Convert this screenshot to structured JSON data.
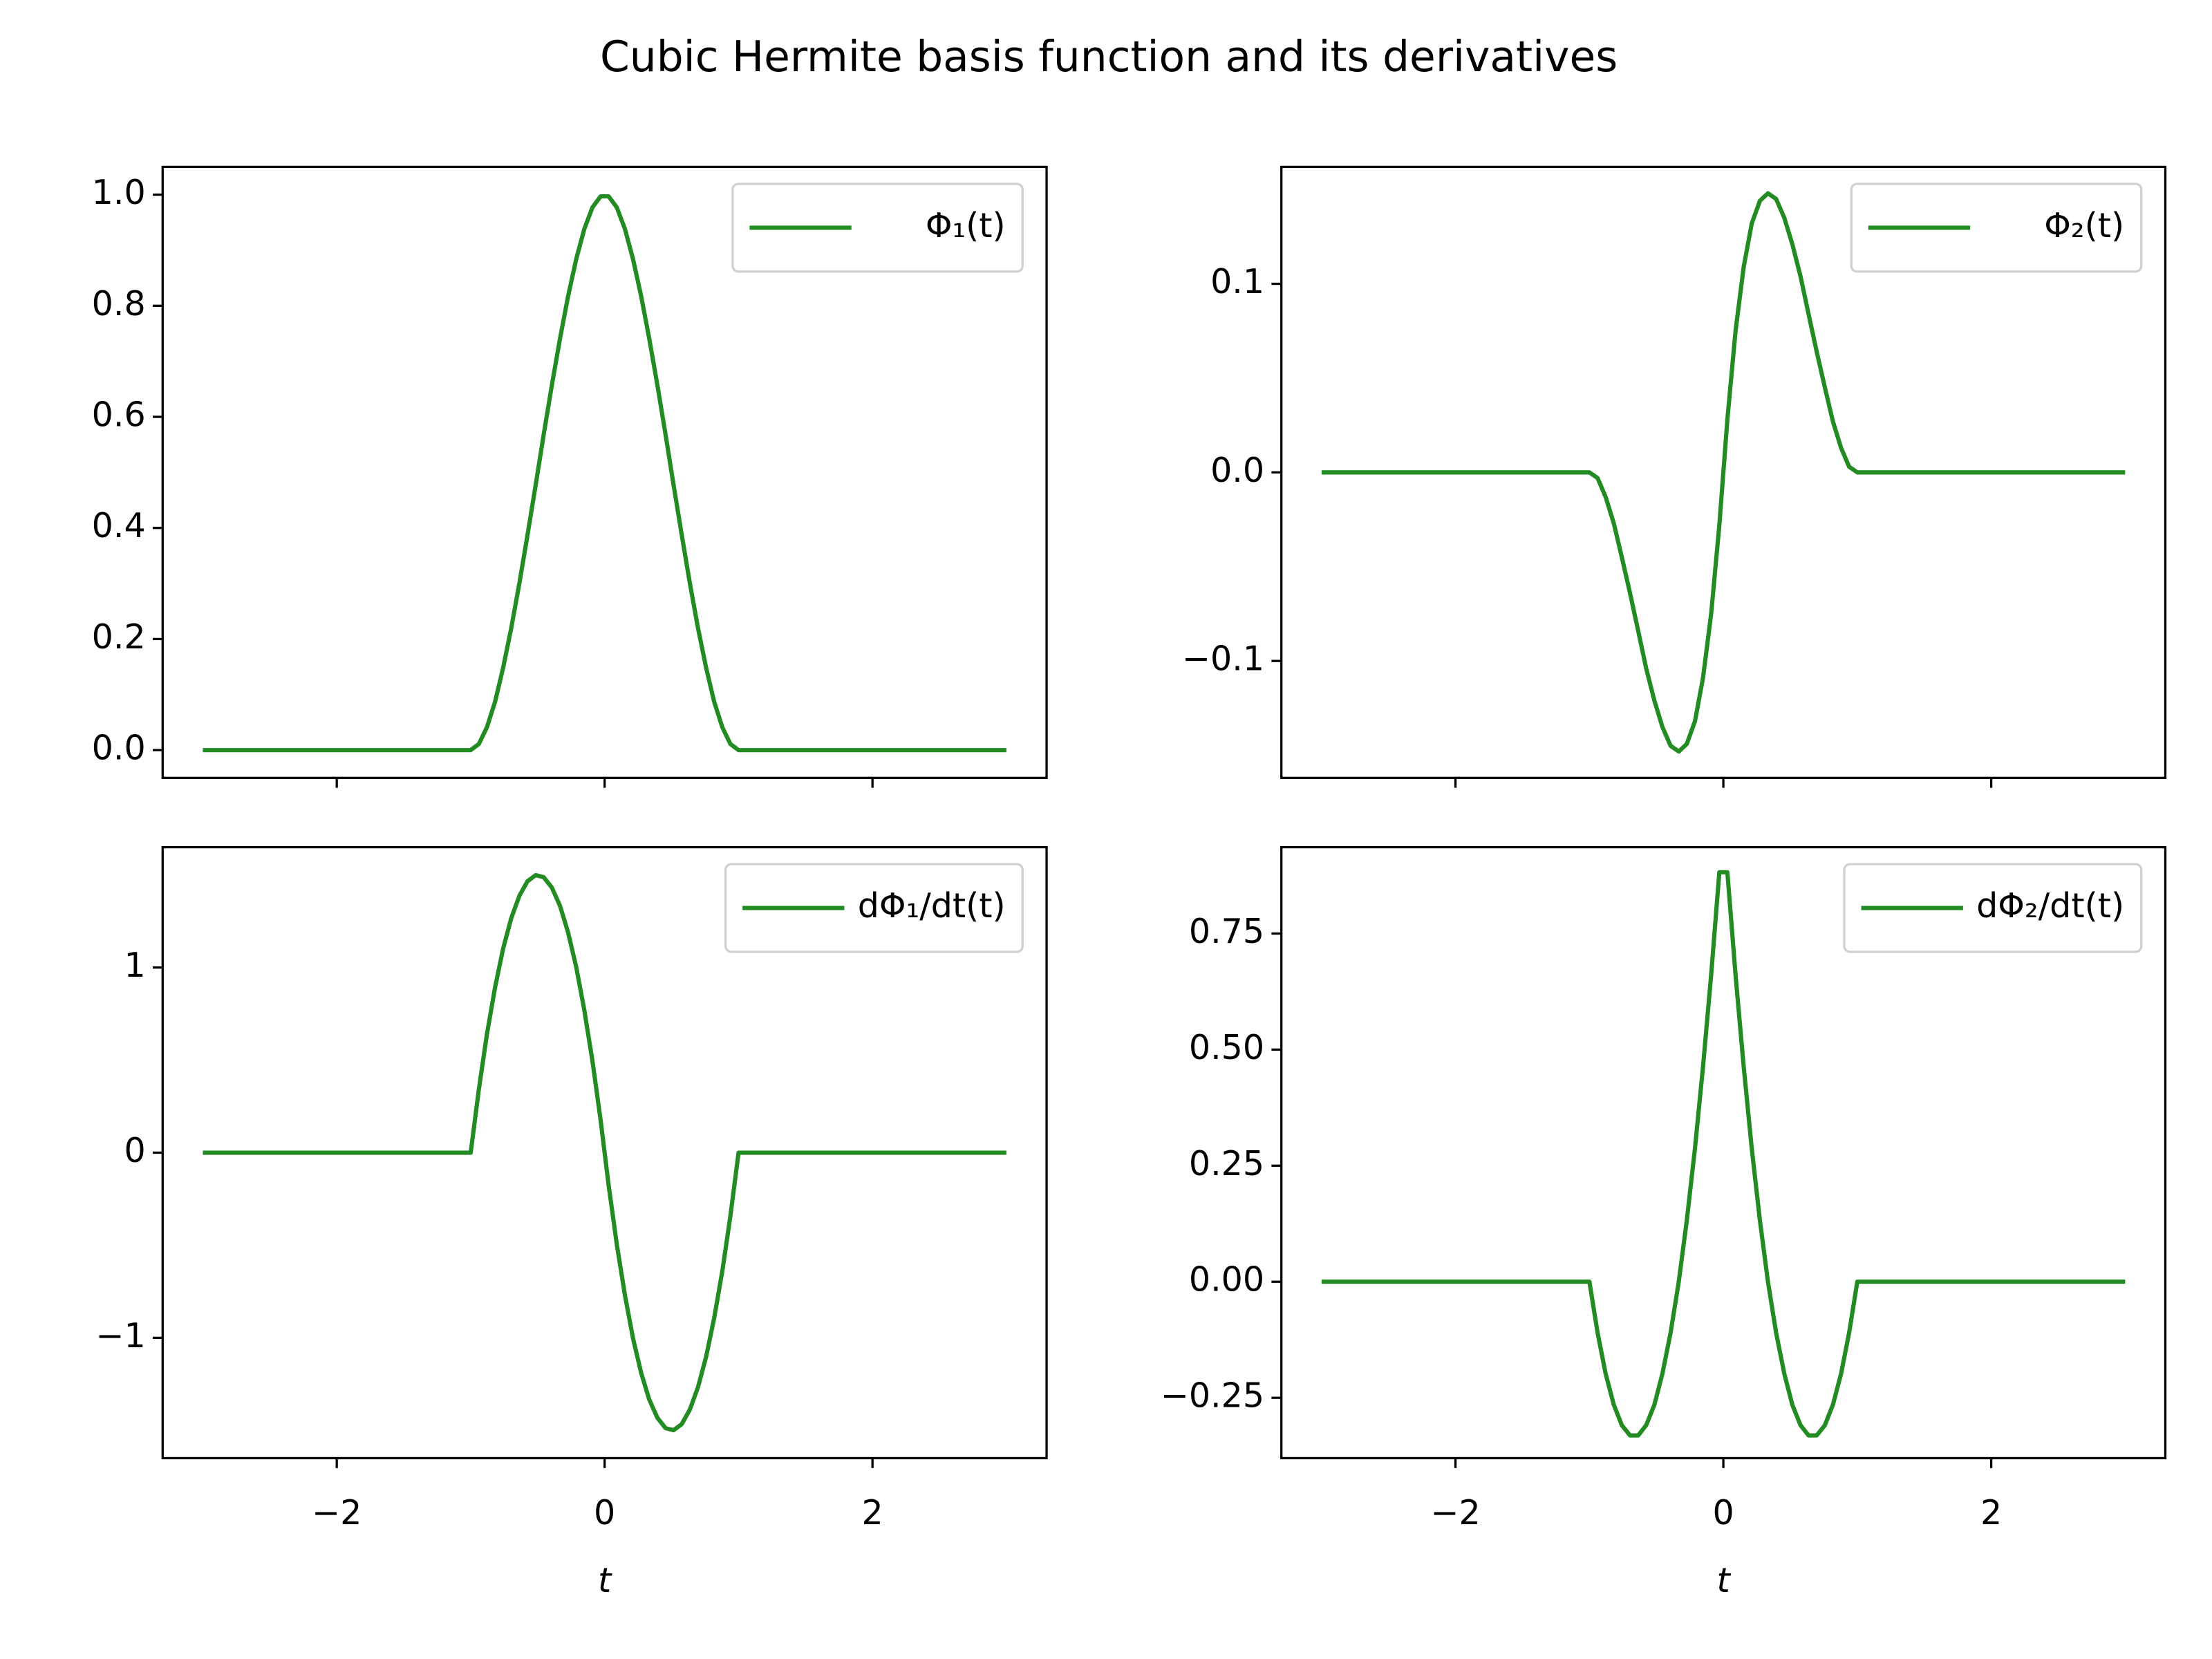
{
  "title": "Cubic Hermite basis function and its derivatives",
  "chart_data": [
    {
      "type": "line",
      "x": [
        -3,
        -1,
        -0.939,
        -0.879,
        -0.818,
        -0.758,
        -0.697,
        -0.636,
        -0.576,
        -0.515,
        -0.455,
        -0.394,
        -0.333,
        -0.273,
        -0.212,
        -0.152,
        -0.091,
        -0.03,
        0.03,
        0.091,
        0.152,
        0.212,
        0.273,
        0.333,
        0.394,
        0.455,
        0.515,
        0.576,
        0.636,
        0.697,
        0.758,
        0.818,
        0.879,
        0.939,
        1,
        3
      ],
      "series": [
        {
          "name": "Φ₁(t)",
          "color": "#228b22",
          "values": [
            0,
            0,
            0.011,
            0.041,
            0.087,
            0.148,
            0.22,
            0.301,
            0.387,
            0.477,
            0.568,
            0.657,
            0.741,
            0.817,
            0.884,
            0.938,
            0.977,
            0.997,
            0.997,
            0.977,
            0.938,
            0.884,
            0.817,
            0.741,
            0.657,
            0.568,
            0.477,
            0.387,
            0.301,
            0.22,
            0.148,
            0.087,
            0.041,
            0.011,
            0,
            0
          ]
        }
      ],
      "xlim": [
        -3.3,
        3.3
      ],
      "xticks": [
        -2,
        0,
        2
      ],
      "ylim": [
        -0.05,
        1.05
      ],
      "yticks": [
        {
          "value": 0,
          "label": "0.0"
        },
        0.2,
        0.4,
        0.6,
        0.8,
        {
          "value": 1,
          "label": "1.0"
        }
      ],
      "legend": "upper right"
    },
    {
      "type": "line",
      "x": [
        -3,
        -1,
        -0.939,
        -0.879,
        -0.818,
        -0.758,
        -0.697,
        -0.636,
        -0.576,
        -0.515,
        -0.455,
        -0.394,
        -0.333,
        -0.273,
        -0.212,
        -0.152,
        -0.091,
        -0.03,
        0.03,
        0.091,
        0.152,
        0.212,
        0.273,
        0.333,
        0.394,
        0.455,
        0.515,
        0.576,
        0.636,
        0.697,
        0.758,
        0.818,
        0.879,
        0.939,
        1,
        3
      ],
      "series": [
        {
          "name": "Φ₂(t)",
          "color": "#228b22",
          "values": [
            0,
            0,
            -0.003,
            -0.013,
            -0.027,
            -0.045,
            -0.064,
            -0.084,
            -0.104,
            -0.121,
            -0.135,
            -0.145,
            -0.148,
            -0.144,
            -0.132,
            -0.109,
            -0.075,
            -0.028,
            0.028,
            0.075,
            0.109,
            0.132,
            0.144,
            0.148,
            0.145,
            0.135,
            0.121,
            0.104,
            0.084,
            0.064,
            0.045,
            0.027,
            0.013,
            0.003,
            0,
            0
          ]
        }
      ],
      "xlim": [
        -3.3,
        3.3
      ],
      "xticks": [
        -2,
        0,
        2
      ],
      "ylim": [
        -0.162,
        0.162
      ],
      "yticks": [
        {
          "value": -0.1,
          "label": "−0.1"
        },
        {
          "value": 0,
          "label": "0.0"
        },
        0.1
      ],
      "legend": "upper right"
    },
    {
      "type": "line",
      "x": [
        -3,
        -1,
        -0.939,
        -0.879,
        -0.818,
        -0.758,
        -0.697,
        -0.636,
        -0.576,
        -0.515,
        -0.455,
        -0.394,
        -0.333,
        -0.273,
        -0.212,
        -0.152,
        -0.091,
        -0.03,
        0.03,
        0.091,
        0.152,
        0.212,
        0.273,
        0.333,
        0.394,
        0.455,
        0.515,
        0.576,
        0.636,
        0.697,
        0.758,
        0.818,
        0.879,
        0.939,
        1,
        3
      ],
      "series": [
        {
          "name": "dΦ₁/dt(t)",
          "color": "#228b22",
          "values": [
            0,
            0,
            0.342,
            0.639,
            0.893,
            1.102,
            1.267,
            1.388,
            1.466,
            1.499,
            1.488,
            1.432,
            1.333,
            1.19,
            1.003,
            0.771,
            0.496,
            0.176,
            -0.176,
            -0.496,
            -0.771,
            -1.003,
            -1.19,
            -1.333,
            -1.432,
            -1.488,
            -1.499,
            -1.466,
            -1.388,
            -1.267,
            -1.102,
            -0.893,
            -0.639,
            -0.342,
            0,
            0
          ]
        }
      ],
      "xlim": [
        -3.3,
        3.3
      ],
      "xticks": [
        {
          "value": -2,
          "label": "−2"
        },
        0,
        2
      ],
      "xlabel": "t",
      "ylim": [
        -1.65,
        1.65
      ],
      "yticks": [
        {
          "value": -1,
          "label": "−1"
        },
        0,
        1
      ],
      "legend": "upper right"
    },
    {
      "type": "line",
      "x": [
        -3,
        -1,
        -0.939,
        -0.879,
        -0.818,
        -0.758,
        -0.697,
        -0.636,
        -0.576,
        -0.515,
        -0.455,
        -0.394,
        -0.333,
        -0.273,
        -0.212,
        -0.152,
        -0.091,
        -0.03,
        0.03,
        0.091,
        0.152,
        0.212,
        0.273,
        0.333,
        0.394,
        0.455,
        0.515,
        0.576,
        0.636,
        0.697,
        0.758,
        0.818,
        0.879,
        0.939,
        1,
        3
      ],
      "series": [
        {
          "name": "dΦ₂/dt(t)",
          "color": "#228b22",
          "values": [
            0,
            0,
            -0.11,
            -0.198,
            -0.265,
            -0.309,
            -0.331,
            -0.331,
            -0.309,
            -0.265,
            -0.198,
            -0.11,
            0,
            0.132,
            0.287,
            0.463,
            0.661,
            0.882,
            0.882,
            0.661,
            0.463,
            0.287,
            0.132,
            0,
            -0.11,
            -0.198,
            -0.265,
            -0.309,
            -0.331,
            -0.331,
            -0.309,
            -0.265,
            -0.198,
            -0.11,
            0,
            0
          ]
        }
      ],
      "xlim": [
        -3.3,
        3.3
      ],
      "xticks": [
        {
          "value": -2,
          "label": "−2"
        },
        0,
        2
      ],
      "xlabel": "t",
      "ylim": [
        -0.38,
        0.936
      ],
      "yticks": [
        {
          "value": -0.25,
          "label": "−0.25"
        },
        {
          "value": 0,
          "label": "0.00"
        },
        0.25,
        {
          "value": 0.5,
          "label": "0.50"
        },
        0.75
      ],
      "legend": "upper right"
    }
  ]
}
